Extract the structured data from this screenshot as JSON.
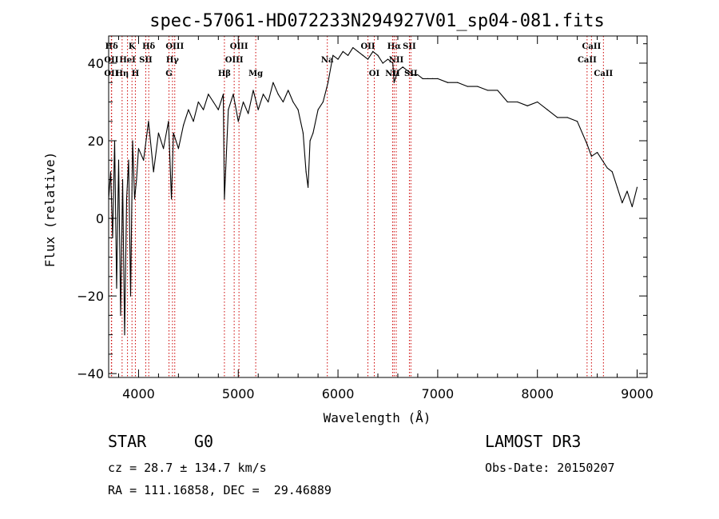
{
  "chart_data": {
    "type": "line",
    "title": "spec-57061-HD072233N294927V01_sp04-081.fits",
    "xlabel": "Wavelength (Å)",
    "ylabel": "Flux (relative)",
    "xlim": [
      3700,
      9100
    ],
    "ylim": [
      -41,
      47
    ],
    "xticks": [
      4000,
      5000,
      6000,
      7000,
      8000,
      9000
    ],
    "yticks": [
      -40,
      -20,
      0,
      20,
      40
    ],
    "grid": false,
    "series": [
      {
        "name": "flux",
        "x": [
          3700,
          3720,
          3740,
          3760,
          3780,
          3800,
          3820,
          3840,
          3860,
          3880,
          3900,
          3920,
          3940,
          3960,
          3980,
          4000,
          4050,
          4100,
          4150,
          4200,
          4250,
          4300,
          4330,
          4350,
          4400,
          4450,
          4500,
          4550,
          4600,
          4650,
          4700,
          4750,
          4800,
          4850,
          4861,
          4900,
          4950,
          5000,
          5050,
          5100,
          5150,
          5200,
          5250,
          5300,
          5350,
          5400,
          5450,
          5500,
          5550,
          5600,
          5650,
          5680,
          5700,
          5720,
          5750,
          5800,
          5850,
          5900,
          5950,
          6000,
          6050,
          6100,
          6150,
          6200,
          6250,
          6300,
          6350,
          6400,
          6450,
          6500,
          6550,
          6563,
          6600,
          6650,
          6700,
          6750,
          6800,
          6850,
          6900,
          6950,
          7000,
          7100,
          7200,
          7300,
          7400,
          7500,
          7600,
          7700,
          7800,
          7900,
          8000,
          8100,
          8200,
          8300,
          8400,
          8500,
          8542,
          8600,
          8700,
          8750,
          8800,
          8850,
          8900,
          8950,
          9000
        ],
        "y": [
          5,
          12,
          -5,
          20,
          -18,
          15,
          -25,
          10,
          -30,
          5,
          15,
          -20,
          20,
          5,
          10,
          18,
          15,
          25,
          12,
          22,
          18,
          25,
          5,
          22,
          18,
          24,
          28,
          25,
          30,
          28,
          32,
          30,
          28,
          32,
          5,
          28,
          32,
          25,
          30,
          27,
          33,
          28,
          32,
          30,
          35,
          32,
          30,
          33,
          30,
          28,
          22,
          12,
          8,
          20,
          22,
          28,
          30,
          35,
          42,
          41,
          43,
          42,
          44,
          43,
          42,
          41,
          43,
          42,
          40,
          41,
          40,
          35,
          38,
          39,
          38,
          37,
          37,
          36,
          36,
          36,
          36,
          35,
          35,
          34,
          34,
          33,
          33,
          30,
          30,
          29,
          30,
          28,
          26,
          26,
          25,
          19,
          16,
          17,
          13,
          12,
          8,
          4,
          7,
          3,
          8
        ]
      }
    ],
    "spectral_lines": [
      {
        "label": "Hδ",
        "x": 3730,
        "row": 1
      },
      {
        "label": "K",
        "x": 3934,
        "row": 1
      },
      {
        "label": "Hδ",
        "x": 4102,
        "row": 1
      },
      {
        "label": "OIII",
        "x": 4363,
        "row": 1
      },
      {
        "label": "OIII",
        "x": 5007,
        "row": 1
      },
      {
        "label": "OII",
        "x": 6300,
        "row": 1
      },
      {
        "label": "Hα",
        "x": 6563,
        "row": 1
      },
      {
        "label": "SII",
        "x": 6716,
        "row": 1
      },
      {
        "label": "CaII",
        "x": 8542,
        "row": 1
      },
      {
        "label": "OII",
        "x": 3727,
        "row": 2
      },
      {
        "label": "HeI",
        "x": 3889,
        "row": 2
      },
      {
        "label": "SII",
        "x": 4072,
        "row": 2
      },
      {
        "label": "Hγ",
        "x": 4340,
        "row": 2
      },
      {
        "label": "OIII",
        "x": 4959,
        "row": 2
      },
      {
        "label": "Na",
        "x": 5893,
        "row": 2
      },
      {
        "label": "NII",
        "x": 6584,
        "row": 2
      },
      {
        "label": "CaII",
        "x": 8498,
        "row": 2
      },
      {
        "label": "OII",
        "x": 3727,
        "row": 3
      },
      {
        "label": "Hη",
        "x": 3835,
        "row": 3
      },
      {
        "label": "H",
        "x": 3968,
        "row": 3
      },
      {
        "label": "G",
        "x": 4305,
        "row": 3
      },
      {
        "label": "Hβ",
        "x": 4861,
        "row": 3
      },
      {
        "label": "Mg",
        "x": 5175,
        "row": 3
      },
      {
        "label": "OI",
        "x": 6364,
        "row": 3
      },
      {
        "label": "NII",
        "x": 6548,
        "row": 3
      },
      {
        "label": "SII",
        "x": 6731,
        "row": 3
      },
      {
        "label": "CaII",
        "x": 8662,
        "row": 3
      }
    ]
  },
  "info": {
    "object_class": "STAR",
    "subclass": "G0",
    "survey": "LAMOST DR3",
    "cz": "cz = 28.7 ± 134.7 km/s",
    "obs_date": "Obs-Date: 20150207",
    "coords": "RA = 111.16858, DEC =  29.46889"
  },
  "colors": {
    "spectrum": "#000000",
    "line_marker": "#cc0000",
    "axes": "#000000"
  }
}
